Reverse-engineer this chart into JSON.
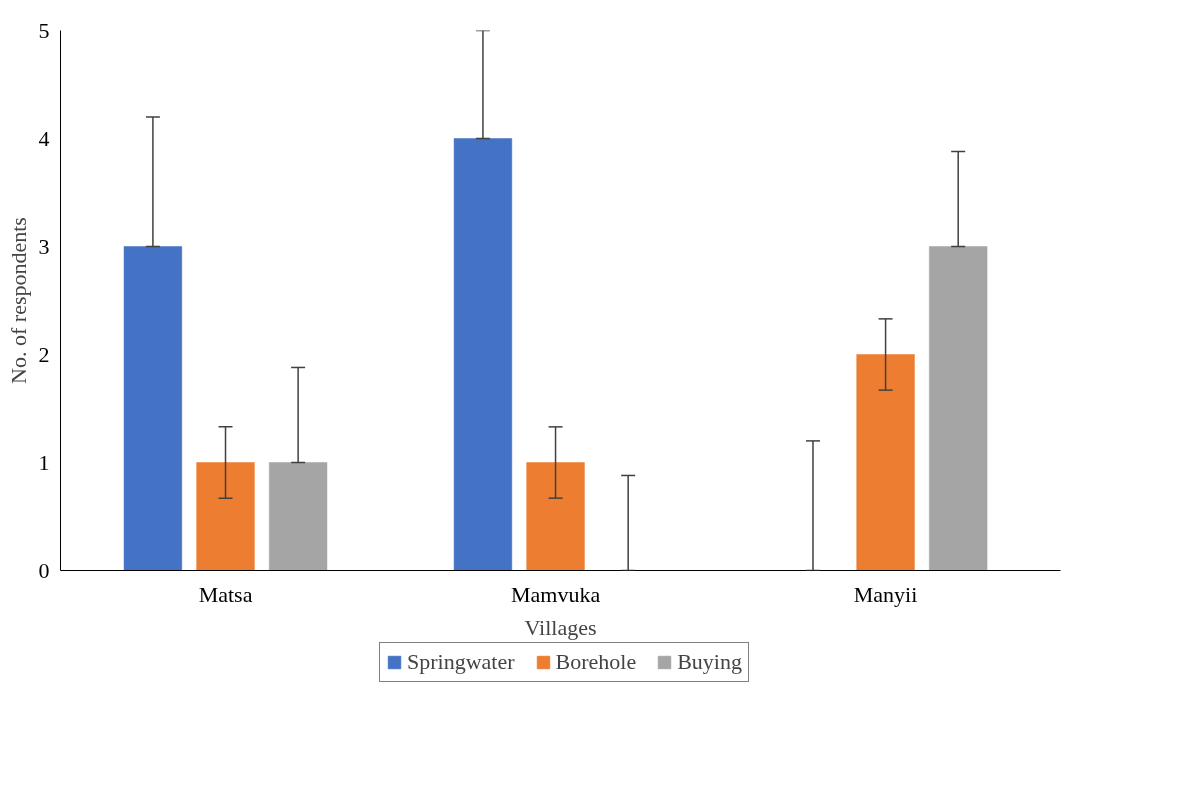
{
  "chart_data": {
    "type": "bar",
    "xlabel": "Villages",
    "ylabel": "No. of respondents",
    "categories": [
      "Matsa",
      "Mamvuka",
      "Manyii"
    ],
    "series": [
      {
        "name": "Springwater",
        "color": "#4472c4",
        "values": [
          3,
          4,
          0
        ],
        "errors": [
          [
            3,
            4.2
          ],
          [
            4,
            5
          ],
          [
            0,
            1.2
          ]
        ]
      },
      {
        "name": "Borehole",
        "color": "#ed7d31",
        "values": [
          1,
          1,
          2
        ],
        "errors": [
          [
            0.67,
            1.33
          ],
          [
            0.67,
            1.33
          ],
          [
            1.67,
            2.33
          ]
        ]
      },
      {
        "name": "Buying",
        "color": "#a5a5a5",
        "values": [
          1,
          0,
          3
        ],
        "errors": [
          [
            1,
            1.88
          ],
          [
            0,
            0.88
          ],
          [
            3,
            3.88
          ]
        ]
      }
    ],
    "ylim": [
      0,
      5
    ],
    "yticks": [
      0,
      1,
      2,
      3,
      4,
      5
    ],
    "grid": false,
    "legend": "bottom"
  }
}
